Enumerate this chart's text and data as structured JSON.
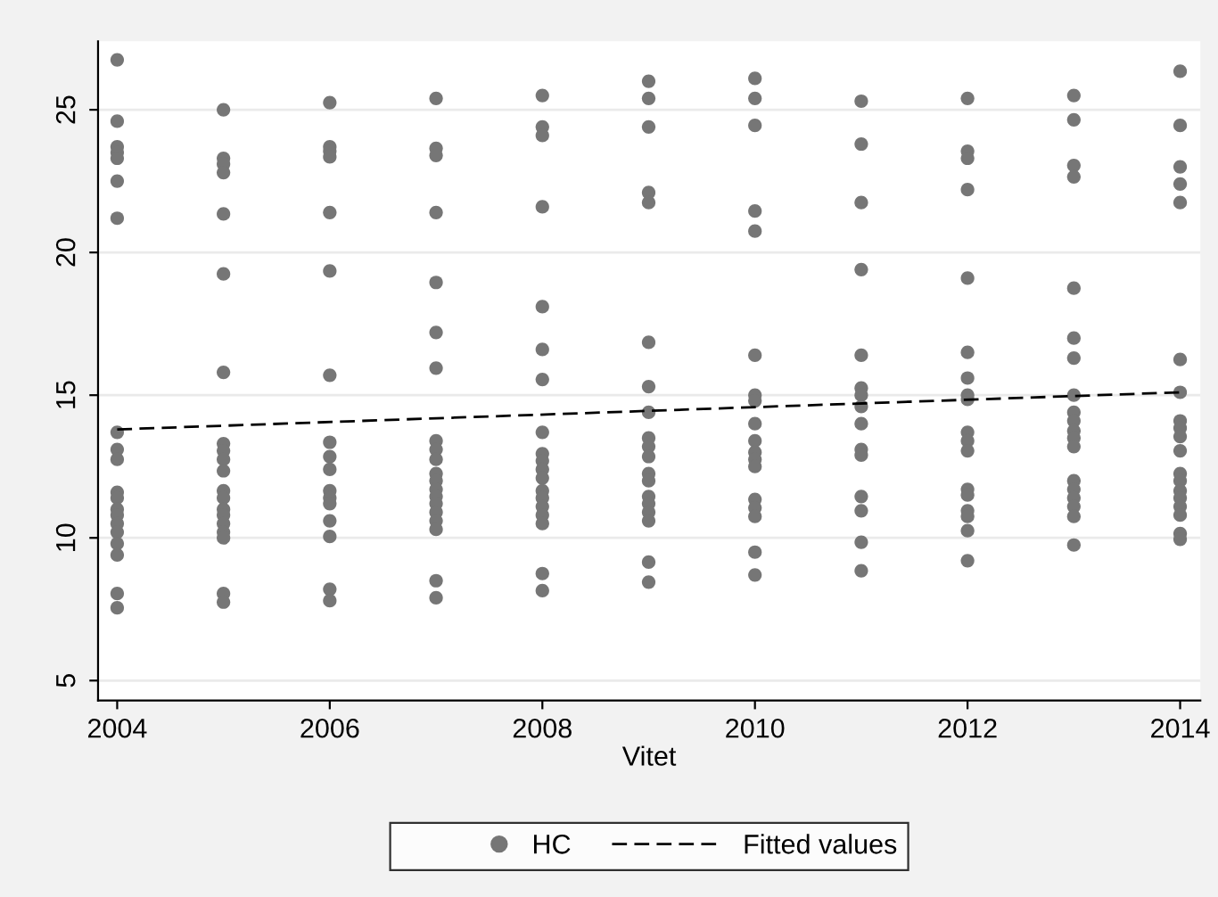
{
  "chart_data": {
    "type": "scatter",
    "xlabel": "Vitet",
    "xlim": [
      2003.82,
      2014.19
    ],
    "xticks": [
      2004,
      2006,
      2008,
      2010,
      2012,
      2014
    ],
    "ylim": [
      4.3,
      27.4
    ],
    "yticks": [
      5,
      10,
      15,
      20,
      25
    ],
    "grid": "y",
    "legend": "bottom",
    "series": [
      {
        "name": "HC",
        "color": "#767676",
        "marker": "circle",
        "x": [
          2004,
          2004,
          2004,
          2004,
          2004,
          2004,
          2004,
          2004,
          2004,
          2004,
          2004,
          2004,
          2004,
          2004,
          2004,
          2004,
          2004,
          2004,
          2004,
          2004,
          2005,
          2005,
          2005,
          2005,
          2005,
          2005,
          2005,
          2005,
          2005,
          2005,
          2005,
          2005,
          2005,
          2005,
          2005,
          2005,
          2005,
          2005,
          2005,
          2005,
          2006,
          2006,
          2006,
          2006,
          2006,
          2006,
          2006,
          2006,
          2006,
          2006,
          2006,
          2006,
          2006,
          2006,
          2006,
          2006,
          2006,
          2007,
          2007,
          2007,
          2007,
          2007,
          2007,
          2007,
          2007,
          2007,
          2007,
          2007,
          2007,
          2007,
          2007,
          2007,
          2007,
          2007,
          2007,
          2007,
          2007,
          2008,
          2008,
          2008,
          2008,
          2008,
          2008,
          2008,
          2008,
          2008,
          2008,
          2008,
          2008,
          2008,
          2008,
          2008,
          2008,
          2008,
          2008,
          2008,
          2009,
          2009,
          2009,
          2009,
          2009,
          2009,
          2009,
          2009,
          2009,
          2009,
          2009,
          2009,
          2009,
          2009,
          2009,
          2009,
          2009,
          2009,
          2009,
          2010,
          2010,
          2010,
          2010,
          2010,
          2010,
          2010,
          2010,
          2010,
          2010,
          2010,
          2010,
          2010,
          2010,
          2010,
          2010,
          2010,
          2010,
          2011,
          2011,
          2011,
          2011,
          2011,
          2011,
          2011,
          2011,
          2011,
          2011,
          2011,
          2011,
          2011,
          2011,
          2011,
          2012,
          2012,
          2012,
          2012,
          2012,
          2012,
          2012,
          2012,
          2012,
          2012,
          2012,
          2012,
          2012,
          2012,
          2012,
          2012,
          2012,
          2012,
          2013,
          2013,
          2013,
          2013,
          2013,
          2013,
          2013,
          2013,
          2013,
          2013,
          2013,
          2013,
          2013,
          2013,
          2013,
          2013,
          2013,
          2013,
          2013,
          2014,
          2014,
          2014,
          2014,
          2014,
          2014,
          2014,
          2014,
          2014,
          2014,
          2014,
          2014,
          2014,
          2014,
          2014,
          2014,
          2014,
          2014,
          2014
        ],
        "values": [
          26.75,
          24.6,
          23.7,
          23.5,
          23.3,
          22.5,
          21.2,
          13.7,
          13.1,
          12.75,
          11.6,
          11.4,
          11.0,
          10.8,
          10.5,
          10.2,
          9.8,
          9.4,
          8.05,
          7.55,
          25.0,
          23.3,
          23.1,
          22.8,
          21.35,
          19.25,
          15.8,
          13.3,
          13.05,
          12.75,
          12.35,
          11.65,
          11.4,
          11.0,
          10.8,
          10.5,
          10.2,
          10.0,
          8.05,
          7.75,
          25.25,
          23.7,
          23.55,
          23.35,
          21.4,
          19.35,
          15.7,
          13.35,
          12.85,
          12.4,
          11.65,
          11.4,
          11.2,
          10.6,
          10.05,
          8.2,
          7.8,
          25.4,
          23.65,
          23.4,
          21.4,
          18.95,
          17.2,
          15.95,
          13.4,
          13.1,
          12.75,
          12.25,
          12.0,
          11.7,
          11.45,
          11.2,
          10.9,
          10.6,
          10.3,
          8.5,
          7.9,
          25.5,
          24.4,
          24.1,
          21.6,
          18.1,
          16.6,
          15.55,
          13.7,
          12.95,
          12.7,
          12.4,
          12.1,
          11.65,
          11.4,
          11.1,
          10.8,
          10.5,
          8.75,
          8.15,
          26.0,
          25.4,
          24.4,
          22.1,
          21.75,
          16.85,
          15.3,
          14.4,
          13.5,
          13.2,
          12.85,
          12.25,
          12.0,
          11.45,
          11.2,
          10.9,
          10.6,
          9.15,
          8.45,
          26.1,
          25.4,
          24.45,
          21.45,
          20.75,
          16.4,
          15.0,
          14.8,
          14.0,
          13.4,
          13.0,
          12.75,
          12.5,
          11.35,
          11.05,
          10.75,
          9.5,
          8.7,
          25.3,
          23.8,
          21.75,
          19.4,
          16.4,
          15.25,
          15.0,
          14.6,
          14.0,
          13.1,
          12.9,
          11.45,
          10.95,
          9.85,
          8.85,
          25.4,
          23.55,
          23.3,
          22.2,
          19.1,
          16.5,
          15.6,
          15.0,
          14.85,
          13.7,
          13.4,
          13.05,
          11.7,
          11.5,
          10.95,
          10.75,
          10.25,
          9.2,
          25.5,
          24.65,
          23.05,
          22.65,
          18.75,
          17.0,
          16.3,
          15.0,
          14.4,
          14.1,
          13.75,
          13.5,
          13.2,
          12.0,
          11.7,
          11.4,
          11.1,
          10.75,
          9.75,
          26.35,
          24.45,
          23.0,
          22.4,
          21.75,
          16.25,
          15.1,
          14.1,
          13.85,
          13.55,
          13.05,
          12.25,
          12.0,
          11.65,
          11.4,
          11.1,
          10.8,
          10.15,
          9.95
        ]
      },
      {
        "name": "Fitted values",
        "type": "line",
        "color": "#000000",
        "line_style": "dashed",
        "marker": "none",
        "x": [
          2004,
          2014
        ],
        "values": [
          13.8,
          15.1
        ]
      }
    ]
  }
}
